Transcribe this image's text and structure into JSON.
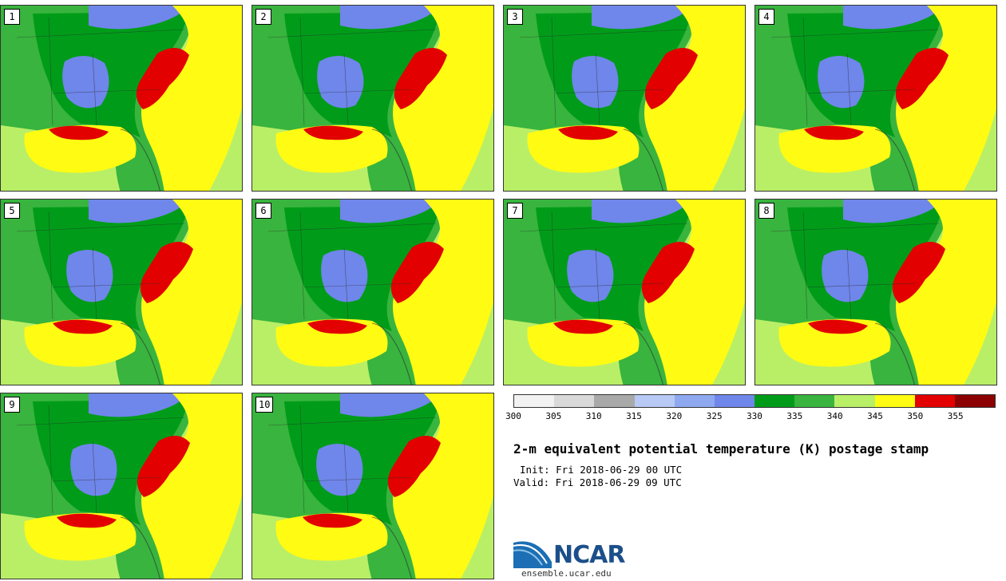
{
  "title": "2-m equivalent potential temperature (K) postage stamp",
  "init": "Init: Fri 2018-06-29 00 UTC",
  "valid": "Valid: Fri 2018-06-29 09 UTC",
  "logo": {
    "text": "NCAR",
    "site": "ensemble.ucar.edu"
  },
  "members": [
    "1",
    "2",
    "3",
    "4",
    "5",
    "6",
    "7",
    "8",
    "9",
    "10"
  ],
  "colorbar": {
    "ticks": [
      "300",
      "305",
      "310",
      "315",
      "320",
      "325",
      "330",
      "335",
      "340",
      "345",
      "350",
      "355"
    ],
    "colors": [
      "#f2f2f2",
      "#d9d9d9",
      "#a9a9a9",
      "#b7c9f4",
      "#8fa9f1",
      "#6f86ea",
      "#009c19",
      "#39b43e",
      "#b9ef67",
      "#fffb13",
      "#e20000",
      "#8b0000"
    ]
  },
  "map_colors": {
    "background": "#b9ef67",
    "mid_green": "#39b43e",
    "dark_green": "#009c19",
    "blue": "#6f86ea",
    "yellow": "#fffb13",
    "red": "#e20000"
  }
}
